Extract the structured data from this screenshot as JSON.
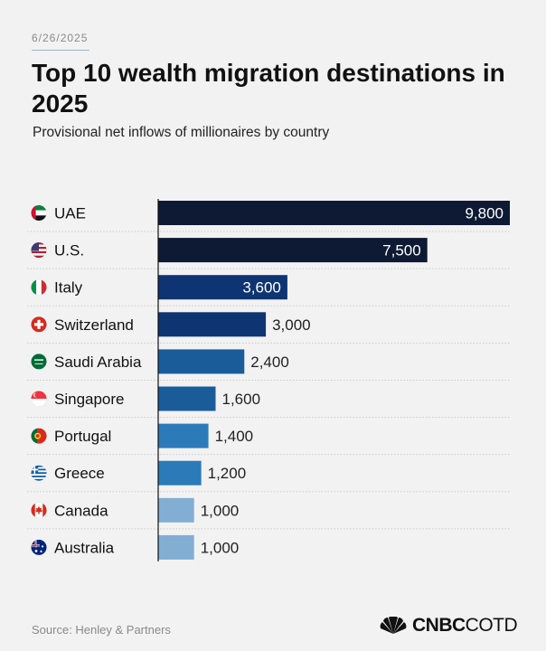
{
  "header": {
    "date": "6/26/2025",
    "title": "Top 10 wealth migration destinations in 2025",
    "subtitle": "Provisional net inflows of millionaires by country"
  },
  "footer": {
    "source": "Source: Henley & Partners",
    "logo_bold": "CNBC",
    "logo_light": "COTD"
  },
  "chart_data": {
    "type": "bar",
    "orientation": "horizontal",
    "categories": [
      "UAE",
      "U.S.",
      "Italy",
      "Switzerland",
      "Saudi Arabia",
      "Singapore",
      "Portugal",
      "Greece",
      "Canada",
      "Australia"
    ],
    "values": [
      9800,
      7500,
      3600,
      3000,
      2400,
      1600,
      1400,
      1200,
      1000,
      1000
    ],
    "value_labels": [
      "9,800",
      "7,500",
      "3,600",
      "3,000",
      "2,400",
      "1,600",
      "1,400",
      "1,200",
      "1,000",
      "1,000"
    ],
    "flags": [
      "uae-flag-icon",
      "us-flag-icon",
      "italy-flag-icon",
      "switzerland-flag-icon",
      "saudi-arabia-flag-icon",
      "singapore-flag-icon",
      "portugal-flag-icon",
      "greece-flag-icon",
      "canada-flag-icon",
      "australia-flag-icon"
    ],
    "bar_colors": [
      "#0e1a33",
      "#0e1a33",
      "#0f3472",
      "#0f3472",
      "#1a5c9a",
      "#1a5c9a",
      "#2c7bb8",
      "#2c7bb8",
      "#82aed4",
      "#82aed4"
    ],
    "xlim": [
      0,
      9800
    ],
    "grid": false,
    "title": "Top 10 wealth migration destinations in 2025",
    "xlabel": "",
    "ylabel": ""
  }
}
